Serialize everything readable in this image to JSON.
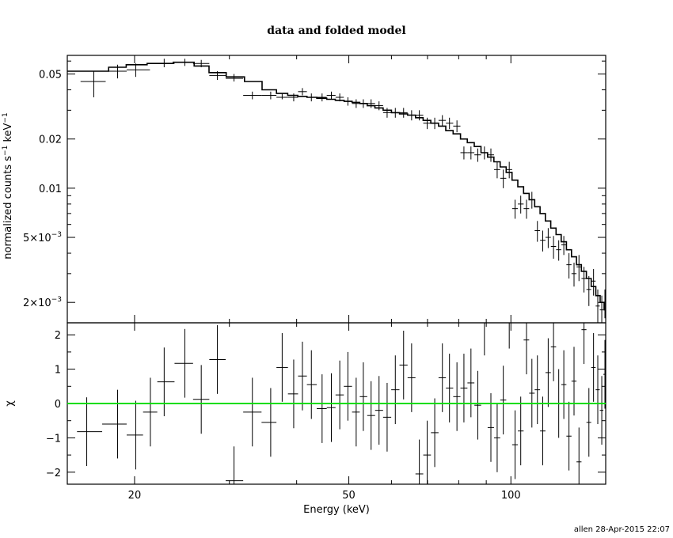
{
  "chart_data": [
    {
      "type": "line",
      "title": "data and folded model",
      "xlabel": "",
      "ylabel_main": "normalized counts s",
      "ylabel_sup1": "−1",
      "ylabel_mid": " keV",
      "ylabel_sup2": "−1",
      "x_scale": "log",
      "y_scale": "log",
      "xlim": [
        15,
        150
      ],
      "ylim": [
        0.0015,
        0.065
      ],
      "y_ticks": [
        {
          "v": 0.05,
          "t": "0.05"
        },
        {
          "v": 0.02,
          "t": "0.02"
        },
        {
          "v": 0.01,
          "t": "0.01"
        },
        {
          "v": 0.005,
          "m": "5×10",
          "e": "−3"
        },
        {
          "v": 0.002,
          "m": "2×10",
          "e": "−3"
        }
      ],
      "series": [
        {
          "style": "crosses",
          "points": [
            [
              16.8,
              0.045,
              0.036,
              0.052
            ],
            [
              18.6,
              0.052,
              0.047,
              0.057
            ],
            [
              20.1,
              0.053,
              0.048,
              0.058
            ],
            [
              22.7,
              0.058,
              0.055,
              0.062
            ],
            [
              24.8,
              0.059,
              0.056,
              0.062
            ],
            [
              26.6,
              0.058,
              0.055,
              0.061
            ],
            [
              28.5,
              0.049,
              0.046,
              0.052
            ],
            [
              30.6,
              0.047,
              0.045,
              0.05
            ],
            [
              33.1,
              0.037,
              0.035,
              0.039
            ],
            [
              35.8,
              0.037,
              0.035,
              0.039
            ],
            [
              37.6,
              0.036,
              0.035,
              0.038
            ],
            [
              39.5,
              0.036,
              0.034,
              0.038
            ],
            [
              41.0,
              0.039,
              0.037,
              0.041
            ],
            [
              42.6,
              0.036,
              0.034,
              0.038
            ],
            [
              44.6,
              0.036,
              0.034,
              0.038
            ],
            [
              46.4,
              0.037,
              0.035,
              0.039
            ],
            [
              48.1,
              0.036,
              0.034,
              0.038
            ],
            [
              49.8,
              0.034,
              0.032,
              0.036
            ],
            [
              51.6,
              0.033,
              0.031,
              0.035
            ],
            [
              53.2,
              0.033,
              0.031,
              0.035
            ],
            [
              55.0,
              0.033,
              0.031,
              0.035
            ],
            [
              56.9,
              0.032,
              0.03,
              0.034
            ],
            [
              58.9,
              0.029,
              0.027,
              0.031
            ],
            [
              61.0,
              0.029,
              0.027,
              0.031
            ],
            [
              63.2,
              0.029,
              0.027,
              0.031
            ],
            [
              65.4,
              0.028,
              0.026,
              0.03
            ],
            [
              67.6,
              0.028,
              0.026,
              0.03
            ],
            [
              69.9,
              0.025,
              0.023,
              0.027
            ],
            [
              72.2,
              0.025,
              0.023,
              0.027
            ],
            [
              74.6,
              0.026,
              0.024,
              0.028
            ],
            [
              76.9,
              0.025,
              0.023,
              0.027
            ],
            [
              79.4,
              0.024,
              0.022,
              0.026
            ],
            [
              81.8,
              0.0165,
              0.015,
              0.018
            ],
            [
              84.3,
              0.0165,
              0.015,
              0.018
            ],
            [
              86.8,
              0.016,
              0.0145,
              0.0175
            ],
            [
              89.3,
              0.0165,
              0.015,
              0.018
            ],
            [
              91.8,
              0.016,
              0.0145,
              0.0175
            ],
            [
              94.3,
              0.013,
              0.0115,
              0.0145
            ],
            [
              96.8,
              0.0115,
              0.01,
              0.013
            ],
            [
              99.3,
              0.013,
              0.0115,
              0.0145
            ],
            [
              101.8,
              0.0075,
              0.0065,
              0.0085
            ],
            [
              104.3,
              0.008,
              0.007,
              0.009
            ],
            [
              106.9,
              0.0075,
              0.0065,
              0.0085
            ],
            [
              109.4,
              0.0085,
              0.0075,
              0.0095
            ],
            [
              112.0,
              0.0055,
              0.0047,
              0.0063
            ],
            [
              114.6,
              0.0048,
              0.0041,
              0.0055
            ],
            [
              117.3,
              0.005,
              0.0043,
              0.0057
            ],
            [
              120.0,
              0.0044,
              0.0037,
              0.0051
            ],
            [
              122.7,
              0.0042,
              0.0036,
              0.0048
            ],
            [
              125.4,
              0.0045,
              0.0039,
              0.0051
            ],
            [
              128.2,
              0.0034,
              0.0028,
              0.004
            ],
            [
              131.0,
              0.003,
              0.0025,
              0.0035
            ],
            [
              133.8,
              0.0033,
              0.0027,
              0.0039
            ],
            [
              136.7,
              0.0028,
              0.0023,
              0.0033
            ],
            [
              139.6,
              0.0024,
              0.0019,
              0.0029
            ],
            [
              142.4,
              0.0027,
              0.0022,
              0.0032
            ],
            [
              145.0,
              0.0019,
              0.0015,
              0.0024
            ],
            [
              147.5,
              0.0018,
              0.0015,
              0.0022
            ],
            [
              149.5,
              0.002,
              0.0016,
              0.0024
            ]
          ]
        },
        {
          "style": "step",
          "points": [
            [
              15.0,
              0.052
            ],
            [
              17.9,
              0.055
            ],
            [
              19.3,
              0.057
            ],
            [
              21.1,
              0.058
            ],
            [
              23.6,
              0.059
            ],
            [
              25.8,
              0.056
            ],
            [
              27.5,
              0.051
            ],
            [
              29.6,
              0.048
            ],
            [
              32.0,
              0.045
            ],
            [
              34.5,
              0.04
            ],
            [
              36.7,
              0.038
            ],
            [
              38.5,
              0.037
            ],
            [
              40.2,
              0.0365
            ],
            [
              41.8,
              0.036
            ],
            [
              43.6,
              0.0355
            ],
            [
              45.5,
              0.035
            ],
            [
              47.2,
              0.0345
            ],
            [
              49.0,
              0.034
            ],
            [
              50.7,
              0.0335
            ],
            [
              52.4,
              0.033
            ],
            [
              54.1,
              0.032
            ],
            [
              55.9,
              0.031
            ],
            [
              57.9,
              0.03
            ],
            [
              60.0,
              0.029
            ],
            [
              62.1,
              0.0285
            ],
            [
              64.3,
              0.028
            ],
            [
              66.5,
              0.027
            ],
            [
              68.7,
              0.026
            ],
            [
              71.0,
              0.025
            ],
            [
              73.4,
              0.024
            ],
            [
              75.7,
              0.0225
            ],
            [
              78.1,
              0.0215
            ],
            [
              80.6,
              0.02
            ],
            [
              83.0,
              0.019
            ],
            [
              85.5,
              0.018
            ],
            [
              88.0,
              0.0165
            ],
            [
              90.5,
              0.0155
            ],
            [
              93.0,
              0.0145
            ],
            [
              95.5,
              0.0135
            ],
            [
              98.0,
              0.0125
            ],
            [
              100.5,
              0.0112
            ],
            [
              103.0,
              0.0102
            ],
            [
              105.6,
              0.0093
            ],
            [
              108.1,
              0.0085
            ],
            [
              110.7,
              0.0077
            ],
            [
              113.3,
              0.007
            ],
            [
              115.9,
              0.0063
            ],
            [
              118.6,
              0.0057
            ],
            [
              121.3,
              0.0052
            ],
            [
              124.0,
              0.0047
            ],
            [
              126.8,
              0.0042
            ],
            [
              129.6,
              0.0038
            ],
            [
              132.4,
              0.0034
            ],
            [
              135.2,
              0.0031
            ],
            [
              138.1,
              0.0028
            ],
            [
              141.0,
              0.0025
            ],
            [
              143.8,
              0.0022
            ],
            [
              146.5,
              0.002
            ],
            [
              149.0,
              0.0018
            ],
            [
              150.0,
              0.0018
            ]
          ]
        }
      ]
    },
    {
      "type": "scatter",
      "xlabel": "Energy (keV)",
      "ylabel": "χ",
      "x_scale": "log",
      "xlim": [
        15,
        150
      ],
      "ylim": [
        -2.35,
        2.35
      ],
      "x_ticks": [
        {
          "v": 20,
          "t": "20"
        },
        {
          "v": 50,
          "t": "50"
        },
        {
          "v": 100,
          "t": "100"
        }
      ],
      "y_ticks": [
        {
          "v": 2,
          "t": "2"
        },
        {
          "v": 1,
          "t": "1"
        },
        {
          "v": 0,
          "t": "0"
        },
        {
          "v": -1,
          "t": "−1"
        },
        {
          "v": -2,
          "t": "−2"
        }
      ],
      "reference_line": {
        "y": 0,
        "color": "#00dd00"
      },
      "points": [
        [
          16.3,
          -0.82,
          1.0
        ],
        [
          18.6,
          -0.6,
          1.0
        ],
        [
          20.1,
          -0.92,
          1.0
        ],
        [
          21.4,
          -0.25,
          1.0
        ],
        [
          22.7,
          0.63,
          1.0
        ],
        [
          24.8,
          1.17,
          1.0
        ],
        [
          26.6,
          0.12,
          1.0
        ],
        [
          28.5,
          1.28,
          1.0
        ],
        [
          30.6,
          -2.25,
          1.0
        ],
        [
          33.1,
          -0.25,
          1.0
        ],
        [
          35.8,
          -0.55,
          1.0
        ],
        [
          37.6,
          1.05,
          1.0
        ],
        [
          39.5,
          0.28,
          1.0
        ],
        [
          41.0,
          0.8,
          1.0
        ],
        [
          42.6,
          0.55,
          1.0
        ],
        [
          44.6,
          -0.15,
          1.0
        ],
        [
          46.4,
          -0.12,
          1.0
        ],
        [
          48.1,
          0.25,
          1.0
        ],
        [
          49.8,
          0.5,
          1.0
        ],
        [
          51.6,
          -0.25,
          1.0
        ],
        [
          53.2,
          0.2,
          1.0
        ],
        [
          55.0,
          -0.35,
          1.0
        ],
        [
          56.9,
          -0.2,
          1.0
        ],
        [
          58.9,
          -0.4,
          1.0
        ],
        [
          61.0,
          0.4,
          1.0
        ],
        [
          63.2,
          1.12,
          1.0
        ],
        [
          65.4,
          0.75,
          1.0
        ],
        [
          67.6,
          -2.05,
          1.0
        ],
        [
          69.9,
          -1.5,
          1.0
        ],
        [
          72.2,
          -0.85,
          1.0
        ],
        [
          74.6,
          0.75,
          1.0
        ],
        [
          76.9,
          0.45,
          1.0
        ],
        [
          79.4,
          0.2,
          1.0
        ],
        [
          81.8,
          0.45,
          1.0
        ],
        [
          84.3,
          0.6,
          1.0
        ],
        [
          86.8,
          -0.05,
          1.0
        ],
        [
          89.3,
          2.4,
          1.0
        ],
        [
          91.8,
          -0.7,
          1.0
        ],
        [
          94.3,
          -1.0,
          1.0
        ],
        [
          96.8,
          0.1,
          1.0
        ],
        [
          99.3,
          2.6,
          1.0
        ],
        [
          101.8,
          -1.2,
          1.0
        ],
        [
          104.3,
          -0.8,
          1.0
        ],
        [
          106.9,
          1.85,
          1.0
        ],
        [
          109.4,
          0.3,
          1.0
        ],
        [
          112.0,
          0.4,
          1.0
        ],
        [
          114.6,
          -0.8,
          1.0
        ],
        [
          117.3,
          0.9,
          1.0
        ],
        [
          120.0,
          1.65,
          1.0
        ],
        [
          122.7,
          0.0,
          1.0
        ],
        [
          125.4,
          0.55,
          1.0
        ],
        [
          128.2,
          -0.95,
          1.0
        ],
        [
          131.0,
          0.65,
          1.0
        ],
        [
          133.8,
          -1.7,
          1.0
        ],
        [
          136.7,
          2.15,
          1.0
        ],
        [
          139.6,
          -0.55,
          1.0
        ],
        [
          142.4,
          1.05,
          1.0
        ],
        [
          145.0,
          0.4,
          1.0
        ],
        [
          147.5,
          -0.2,
          1.0
        ],
        [
          149.5,
          0.85,
          1.0
        ]
      ]
    }
  ],
  "footer": {
    "credit": "allen 28-Apr-2015 22:07"
  }
}
